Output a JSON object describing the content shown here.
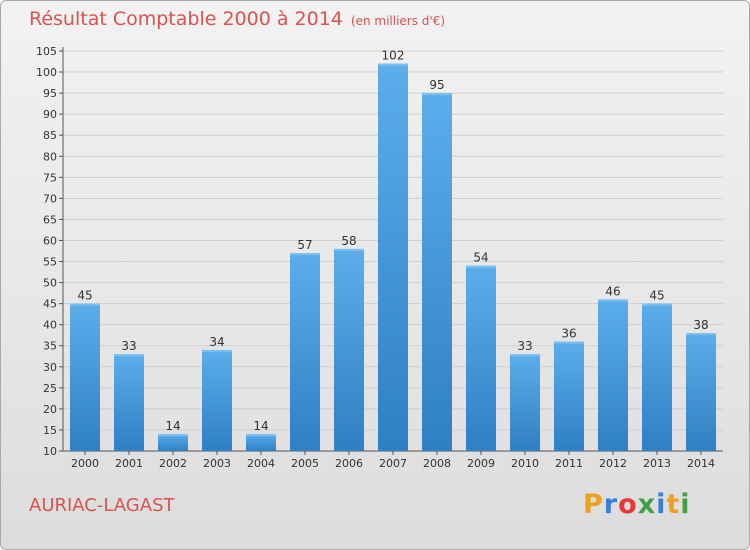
{
  "header": {
    "title": "Résultat Comptable 2000 à 2014",
    "unit": "(en milliers d'€)"
  },
  "footer": {
    "commune": "AURIAC-LAGAST",
    "logo_letters": [
      "P",
      "r",
      "o",
      "x",
      "i",
      "t",
      "i"
    ],
    "logo_colors": [
      "#f0a020",
      "#3a7fd5",
      "#e53935",
      "#43a047",
      "#3a7fd5",
      "#f0a020",
      "#43a047"
    ]
  },
  "chart_data": {
    "type": "bar",
    "categories": [
      "2000",
      "2001",
      "2002",
      "2003",
      "2004",
      "2005",
      "2006",
      "2007",
      "2008",
      "2009",
      "2010",
      "2011",
      "2012",
      "2013",
      "2014"
    ],
    "values": [
      45,
      33,
      14,
      34,
      14,
      57,
      58,
      102,
      95,
      54,
      33,
      36,
      46,
      45,
      38
    ],
    "title": "Résultat Comptable 2000 à 2014",
    "xlabel": "",
    "ylabel": "",
    "ylim": [
      10,
      105
    ],
    "yticks": [
      10,
      15,
      20,
      25,
      30,
      35,
      40,
      45,
      50,
      55,
      60,
      65,
      70,
      75,
      80,
      85,
      90,
      95,
      100,
      105
    ],
    "grid": true,
    "bar_color": "#4f9ee0"
  }
}
